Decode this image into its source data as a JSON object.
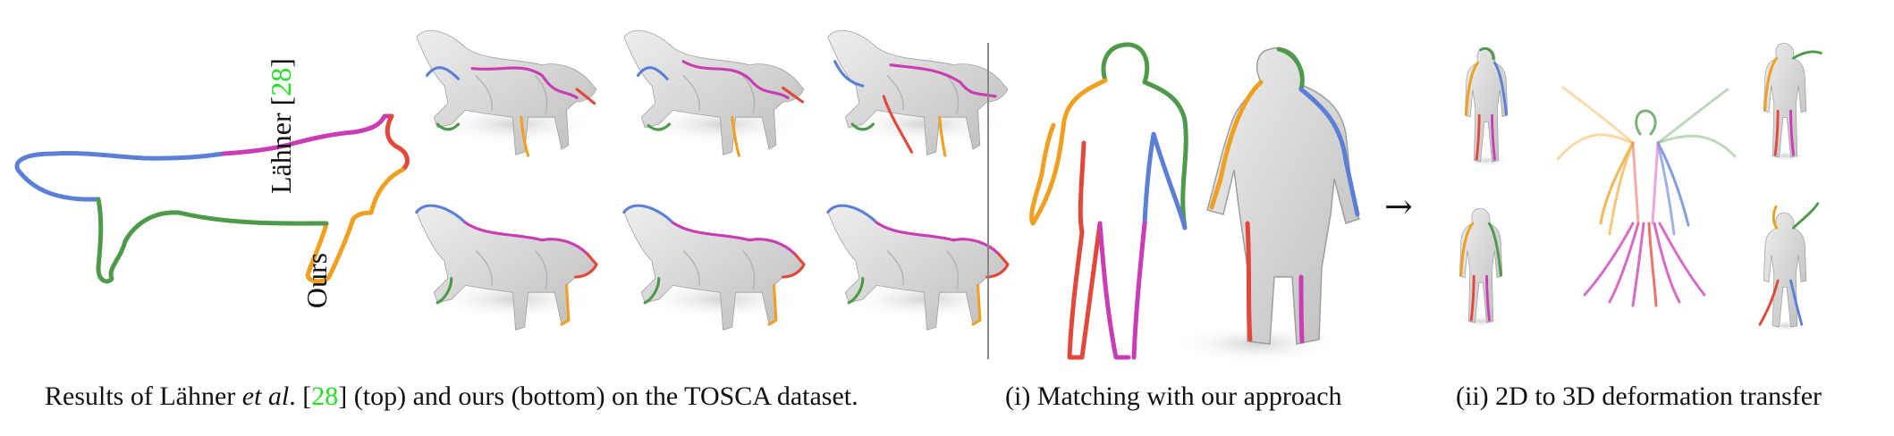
{
  "rows": {
    "top_label_prefix": "Lähner [",
    "top_label_ref": "28",
    "top_label_suffix": "]",
    "bottom_label": "Ours"
  },
  "arrow": "→",
  "captions": {
    "left_p1": "Results of Lähner ",
    "left_etal": "et al",
    "left_p2": ". [",
    "left_ref": "28",
    "left_p3": "] (top) and ours (bottom) on the TOSCA dataset.",
    "middle": "(i) Matching with our approach",
    "right": "(ii) 2D to 3D deformation transfer"
  },
  "colors": {
    "blue": "#5b7fd6",
    "magenta": "#c93cb4",
    "green": "#4d9a4a",
    "orange": "#f0a020",
    "red": "#e2483a",
    "reference_green": "#22e022",
    "mesh_gray": "#d9d9d9"
  }
}
